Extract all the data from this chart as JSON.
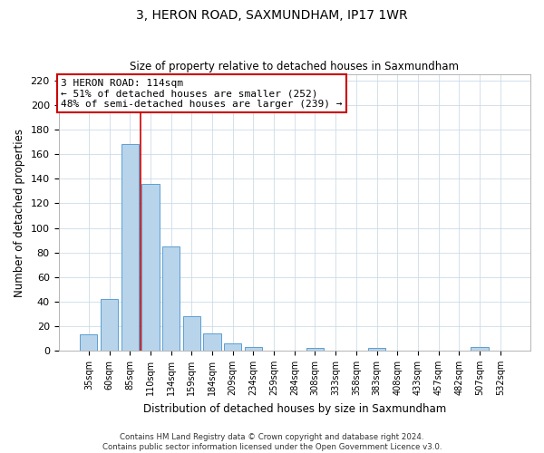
{
  "title": "3, HERON ROAD, SAXMUNDHAM, IP17 1WR",
  "subtitle": "Size of property relative to detached houses in Saxmundham",
  "xlabel": "Distribution of detached houses by size in Saxmundham",
  "ylabel": "Number of detached properties",
  "bar_labels": [
    "35sqm",
    "60sqm",
    "85sqm",
    "110sqm",
    "134sqm",
    "159sqm",
    "184sqm",
    "209sqm",
    "234sqm",
    "259sqm",
    "284sqm",
    "308sqm",
    "333sqm",
    "358sqm",
    "383sqm",
    "408sqm",
    "433sqm",
    "457sqm",
    "482sqm",
    "507sqm",
    "532sqm"
  ],
  "bar_values": [
    13,
    42,
    168,
    136,
    85,
    28,
    14,
    6,
    3,
    0,
    0,
    2,
    0,
    0,
    2,
    0,
    0,
    0,
    0,
    3,
    0
  ],
  "bar_color": "#b8d4ea",
  "bar_edge_color": "#5a9fd4",
  "vline_color": "#cc0000",
  "ylim": [
    0,
    225
  ],
  "yticks": [
    0,
    20,
    40,
    60,
    80,
    100,
    120,
    140,
    160,
    180,
    200,
    220
  ],
  "annotation_line1": "3 HERON ROAD: 114sqm",
  "annotation_line2": "← 51% of detached houses are smaller (252)",
  "annotation_line3": "48% of semi-detached houses are larger (239) →",
  "annotation_box_color": "#ffffff",
  "annotation_box_edge": "#cc0000",
  "footer_text": "Contains HM Land Registry data © Crown copyright and database right 2024.\nContains public sector information licensed under the Open Government Licence v3.0.",
  "background_color": "#ffffff",
  "grid_color": "#ccdce8"
}
